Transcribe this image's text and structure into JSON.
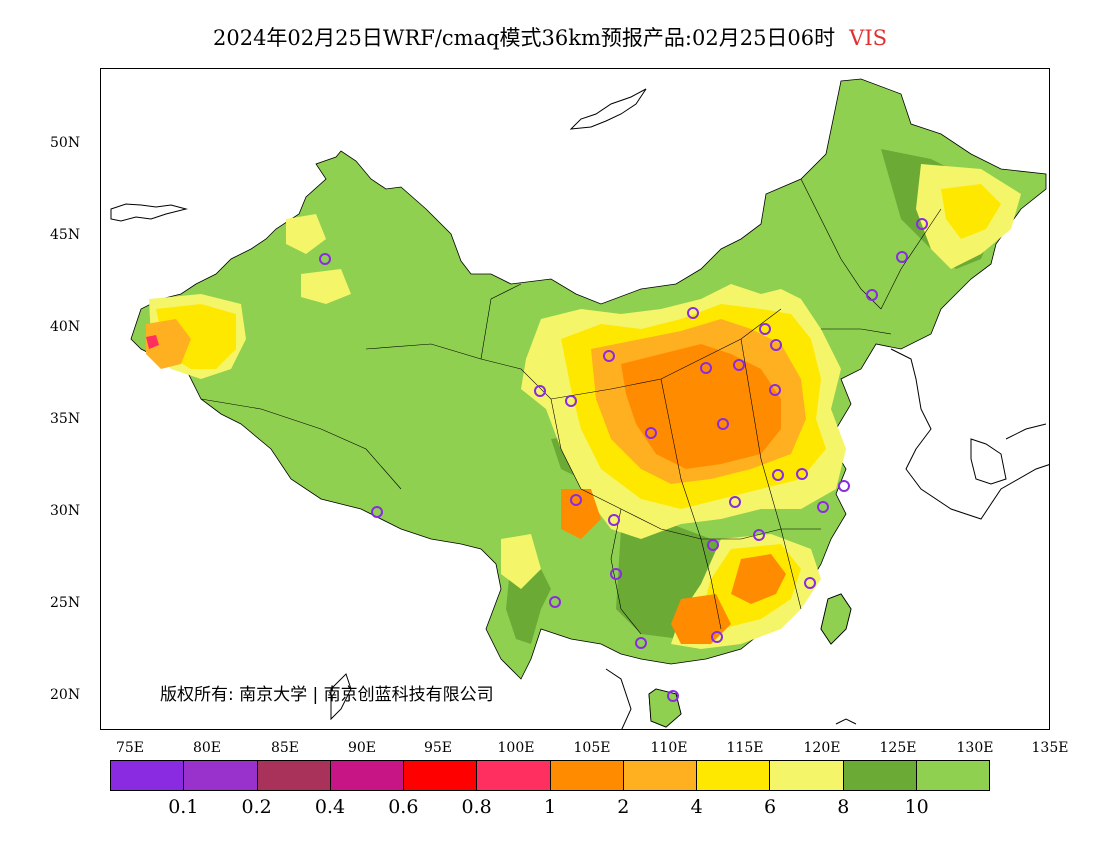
{
  "title": {
    "main": "2024年02月25日WRF/cmaq模式36km预报产品:02月25日06时",
    "variable": "VIS",
    "variable_color": "#e03030"
  },
  "axes": {
    "y_ticks": [
      "50N",
      "45N",
      "40N",
      "35N",
      "30N",
      "25N",
      "20N"
    ],
    "x_ticks": [
      "75E",
      "80E",
      "85E",
      "90E",
      "95E",
      "100E",
      "105E",
      "110E",
      "115E",
      "120E",
      "125E",
      "130E",
      "135E"
    ]
  },
  "copyright": "版权所有: 南京大学 | 南京创蓝科技有限公司",
  "legend": {
    "colors": [
      "#8a2be2",
      "#9932cc",
      "#a8325a",
      "#c71585",
      "#ff0000",
      "#ff3060",
      "#ff8c00",
      "#ffb020",
      "#ffe800",
      "#f5f56a",
      "#6aaa35",
      "#8fd050"
    ],
    "labels": [
      "0.1",
      "0.2",
      "0.4",
      "0.6",
      "0.8",
      "1",
      "2",
      "4",
      "6",
      "8",
      "10"
    ]
  },
  "map_colors": {
    "land_base": "#8fd050",
    "dark_green": "#6aaa35",
    "light_yellow": "#f5f56a",
    "yellow": "#ffe800",
    "orange_light": "#ffb020",
    "orange": "#ff8c00",
    "red": "#ff3060",
    "station_marker": "#8a2be2"
  }
}
